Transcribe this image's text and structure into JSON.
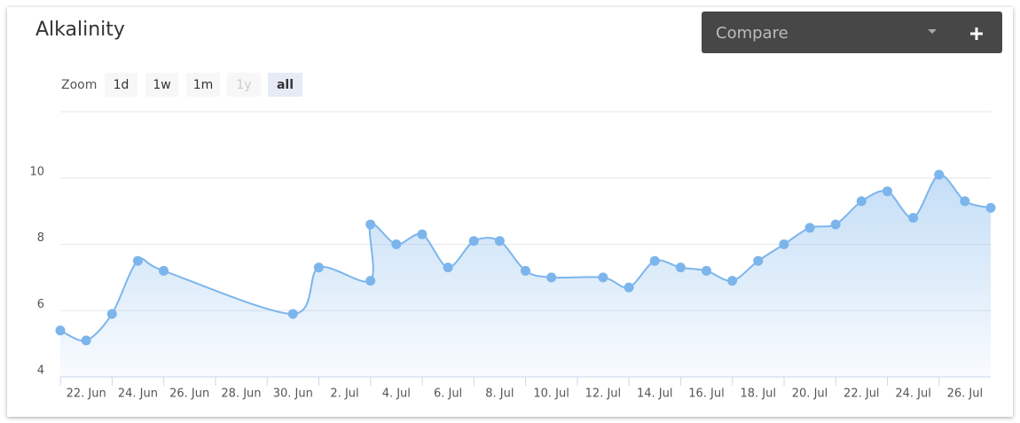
{
  "ui": {
    "compare": "Compare",
    "zoom_label": "Zoom",
    "zoom_buttons": [
      "1d",
      "1w",
      "1m",
      "1y",
      "all"
    ],
    "zoom_disabled": "1y",
    "zoom_selected": "all"
  },
  "chart_data": {
    "type": "line",
    "title": "Alkalinity",
    "x": [
      "06-21",
      "06-22",
      "06-23",
      "06-24",
      "06-25",
      "06-30",
      "07-01",
      "07-03",
      "07-03",
      "07-04",
      "07-05",
      "07-06",
      "07-07",
      "07-08",
      "07-09",
      "07-10",
      "07-12",
      "07-13",
      "07-14",
      "07-15",
      "07-16",
      "07-17",
      "07-18",
      "07-19",
      "07-20",
      "07-21",
      "07-22",
      "07-23",
      "07-24",
      "07-25",
      "07-26",
      "07-27"
    ],
    "series": [
      {
        "name": "Alkalinity",
        "color": "#7cb5ec",
        "values": [
          5.4,
          5.1,
          5.9,
          7.5,
          7.2,
          5.9,
          7.3,
          6.9,
          8.6,
          8.0,
          8.3,
          7.3,
          8.1,
          8.1,
          7.2,
          7.0,
          7.0,
          6.7,
          7.5,
          7.3,
          7.2,
          6.9,
          7.5,
          8.0,
          8.5,
          8.6,
          9.3,
          9.6,
          8.8,
          10.1,
          9.3,
          9.1
        ]
      }
    ],
    "xlim": [
      "06-21",
      "07-27"
    ],
    "xticks": [
      {
        "value": "06-22",
        "label": "22. Jun"
      },
      {
        "value": "06-24",
        "label": "24. Jun"
      },
      {
        "value": "06-26",
        "label": "26. Jun"
      },
      {
        "value": "06-28",
        "label": "28. Jun"
      },
      {
        "value": "06-30",
        "label": "30. Jun"
      },
      {
        "value": "07-02",
        "label": "2. Jul"
      },
      {
        "value": "07-04",
        "label": "4. Jul"
      },
      {
        "value": "07-06",
        "label": "6. Jul"
      },
      {
        "value": "07-08",
        "label": "8. Jul"
      },
      {
        "value": "07-10",
        "label": "10. Jul"
      },
      {
        "value": "07-12",
        "label": "12. Jul"
      },
      {
        "value": "07-14",
        "label": "14. Jul"
      },
      {
        "value": "07-16",
        "label": "16. Jul"
      },
      {
        "value": "07-18",
        "label": "18. Jul"
      },
      {
        "value": "07-20",
        "label": "20. Jul"
      },
      {
        "value": "07-22",
        "label": "22. Jul"
      },
      {
        "value": "07-24",
        "label": "24. Jul"
      },
      {
        "value": "07-26",
        "label": "26. Jul"
      }
    ],
    "ylim": [
      4,
      12
    ],
    "yticks": [
      4,
      6,
      8,
      10
    ],
    "grid": true
  }
}
